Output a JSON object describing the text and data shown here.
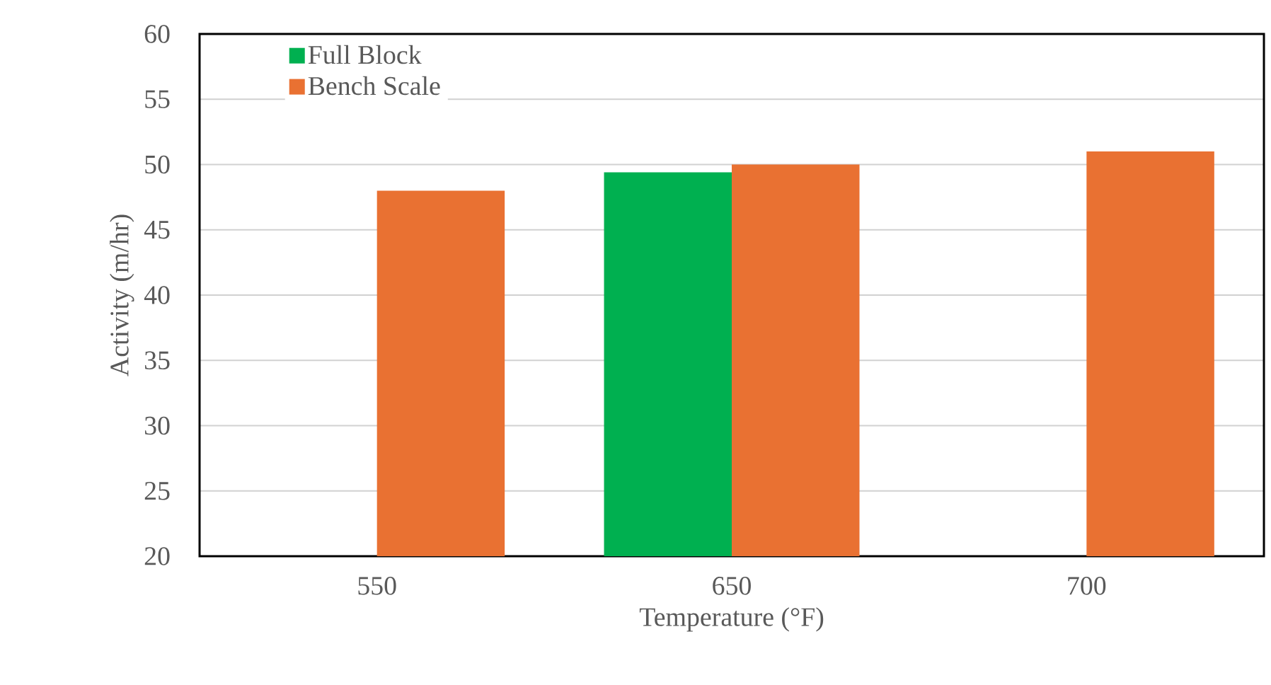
{
  "chart_data": {
    "type": "bar",
    "xlabel": "Temperature (°F)",
    "ylabel": "Activity (m/hr)",
    "categories": [
      "550",
      "650",
      "700"
    ],
    "series": [
      {
        "name": "Full Block",
        "color": "#00b050",
        "values": [
          null,
          49.4,
          null
        ]
      },
      {
        "name": "Bench Scale",
        "color": "#e97132",
        "values": [
          48,
          50,
          51
        ]
      }
    ],
    "ylim": [
      20,
      60
    ],
    "yticks": [
      20,
      25,
      30,
      35,
      40,
      45,
      50,
      55,
      60
    ],
    "grid": "y",
    "legend": "top left"
  }
}
